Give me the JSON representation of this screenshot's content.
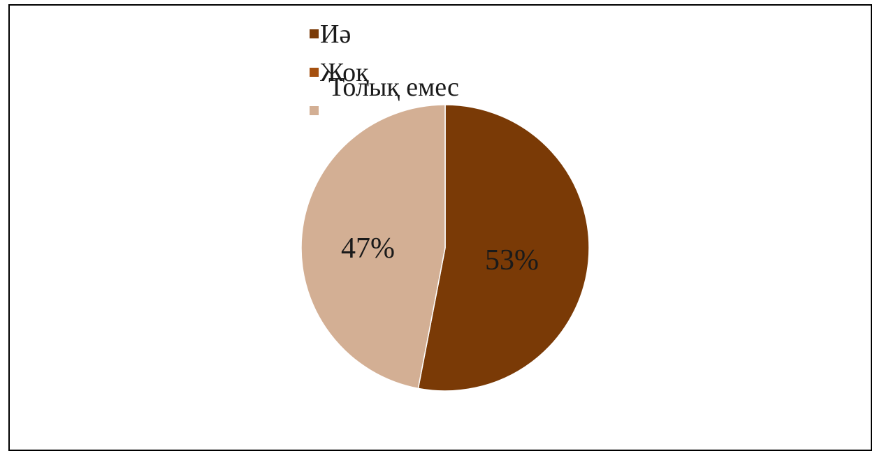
{
  "chart_data": {
    "type": "pie",
    "title": "",
    "categories": [
      "Иә",
      "Жоқ",
      "Толық емес"
    ],
    "values": [
      53,
      0,
      47
    ],
    "data_labels": [
      "53%",
      "",
      "47%"
    ],
    "colors": [
      "#7a3a06",
      "#a5500f",
      "#d3af94"
    ],
    "legend": {
      "placement": "top",
      "entries": [
        "Иә",
        "Жоқ",
        "Толық емес"
      ]
    },
    "grid": false
  }
}
